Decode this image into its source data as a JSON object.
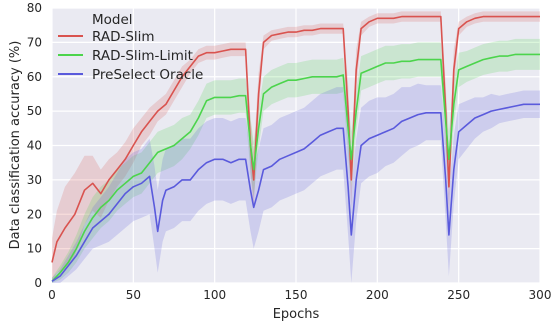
{
  "chart_data": {
    "type": "line",
    "xlabel": "Epochs",
    "ylabel": "Data classification accuracy (%)",
    "xlim": [
      0,
      300
    ],
    "ylim": [
      0,
      80
    ],
    "xticks": [
      "0",
      "50",
      "100",
      "150",
      "200",
      "250",
      "300"
    ],
    "yticks": [
      "0",
      "10",
      "20",
      "30",
      "40",
      "50",
      "60",
      "70",
      "80"
    ],
    "grid": true,
    "legend": {
      "title": "Model",
      "placement": "top-left"
    },
    "series": [
      {
        "name": "RAD-Slim",
        "color": "#d9534f",
        "x": [
          0,
          3,
          8,
          14,
          20,
          25,
          30,
          35,
          40,
          45,
          50,
          55,
          60,
          65,
          70,
          75,
          80,
          85,
          90,
          95,
          100,
          105,
          110,
          115,
          119,
          122,
          124,
          127,
          130,
          135,
          140,
          145,
          150,
          155,
          160,
          165,
          170,
          175,
          179,
          182,
          184,
          187,
          190,
          195,
          200,
          205,
          210,
          215,
          220,
          225,
          230,
          235,
          239,
          242,
          244,
          247,
          250,
          255,
          260,
          265,
          270,
          275,
          280,
          285,
          290,
          295,
          300
        ],
        "y": [
          6,
          12,
          16,
          20,
          27,
          29,
          26,
          30,
          33,
          36,
          40,
          44,
          47,
          50,
          52,
          56,
          60,
          63,
          66,
          67,
          67,
          67.5,
          68,
          68,
          68,
          40,
          30,
          55,
          70,
          72,
          72.5,
          73,
          73,
          73.5,
          73.5,
          74,
          74,
          74,
          74,
          50,
          30,
          62,
          74,
          76,
          77,
          77,
          77,
          77.5,
          77.5,
          77.5,
          77.5,
          77.5,
          77.5,
          50,
          28,
          62,
          74,
          76,
          77,
          77.5,
          77.5,
          77.5,
          77.5,
          77.5,
          77.5,
          77.5,
          77.5
        ],
        "band": [
          7,
          9,
          12,
          12,
          10,
          8,
          7,
          6,
          5,
          5,
          5,
          4,
          4,
          3,
          3,
          3,
          3,
          2,
          2,
          2,
          2,
          2,
          2,
          2,
          2,
          8,
          8,
          6,
          2,
          1.5,
          1.5,
          1.5,
          1.5,
          1.5,
          1.5,
          1.5,
          1.5,
          1.5,
          1.5,
          8,
          8,
          6,
          2,
          1.5,
          1.5,
          1.5,
          1.5,
          1.5,
          1.5,
          1.5,
          1.5,
          1.5,
          1.5,
          8,
          8,
          6,
          2,
          1.5,
          1.5,
          1.5,
          1.5,
          1.5,
          1.5,
          1.5,
          1.5,
          1.5,
          1.5
        ]
      },
      {
        "name": "RAD-Slim-Limit",
        "color": "#4cd44c",
        "x": [
          0,
          5,
          10,
          15,
          20,
          25,
          30,
          35,
          40,
          45,
          50,
          55,
          60,
          65,
          70,
          75,
          80,
          85,
          90,
          95,
          100,
          105,
          110,
          115,
          119,
          122,
          124,
          127,
          130,
          135,
          140,
          145,
          150,
          155,
          160,
          165,
          170,
          175,
          179,
          182,
          184,
          187,
          190,
          195,
          200,
          205,
          210,
          215,
          220,
          225,
          230,
          235,
          239,
          242,
          244,
          247,
          250,
          255,
          260,
          265,
          270,
          275,
          280,
          285,
          290,
          295,
          300
        ],
        "y": [
          0.5,
          3,
          6,
          10,
          15,
          19,
          22,
          24,
          27,
          29,
          31,
          32,
          35,
          38,
          39,
          40,
          42,
          44,
          48,
          53,
          54,
          54,
          54,
          54.5,
          54.5,
          40,
          33,
          45,
          55,
          57,
          58,
          59,
          59,
          59.5,
          60,
          60,
          60,
          60,
          60.5,
          45,
          36,
          50,
          61,
          62,
          63,
          64,
          64,
          64.5,
          64.5,
          65,
          65,
          65,
          65,
          47,
          36,
          52,
          62,
          63,
          64,
          65,
          65.5,
          66,
          66,
          66.5,
          66.5,
          66.5,
          66.5
        ],
        "band": [
          1,
          2,
          3,
          4,
          5,
          6,
          6,
          6,
          6,
          6,
          6,
          6,
          6,
          6,
          6,
          6,
          6,
          5,
          5,
          5,
          5,
          5,
          5,
          5,
          5,
          8,
          8,
          6,
          5,
          5,
          5,
          5,
          5,
          5,
          5,
          5,
          5,
          5,
          5,
          8,
          8,
          6,
          5,
          5,
          5,
          5,
          5,
          5,
          5,
          5,
          5,
          5,
          5,
          8,
          8,
          6,
          5,
          4.5,
          4.5,
          4.5,
          4.5,
          4.5,
          4.5,
          4.5,
          4.5,
          4.5,
          4.5
        ]
      },
      {
        "name": "PreSelect Oracle",
        "color": "#5a5adc",
        "x": [
          0,
          5,
          10,
          15,
          20,
          25,
          30,
          35,
          40,
          45,
          50,
          55,
          60,
          63,
          65,
          68,
          70,
          75,
          80,
          85,
          90,
          95,
          100,
          105,
          110,
          115,
          119,
          122,
          124,
          127,
          130,
          135,
          140,
          145,
          150,
          155,
          160,
          165,
          170,
          175,
          179,
          182,
          184,
          187,
          190,
          195,
          200,
          205,
          210,
          215,
          220,
          225,
          230,
          235,
          239,
          242,
          244,
          247,
          250,
          255,
          260,
          265,
          270,
          275,
          280,
          285,
          290,
          295,
          300
        ],
        "y": [
          0.5,
          2,
          5,
          8,
          12,
          16,
          18,
          20,
          23,
          26,
          28,
          29,
          31,
          22,
          15,
          24,
          27,
          28,
          30,
          30,
          33,
          35,
          36,
          36,
          35,
          36,
          36,
          27,
          22,
          27,
          33,
          34,
          36,
          37,
          38,
          39,
          41,
          43,
          44,
          45,
          45,
          28,
          14,
          30,
          40,
          42,
          43,
          44,
          45,
          47,
          48,
          49,
          49.5,
          49.5,
          49.5,
          30,
          14,
          33,
          44,
          46,
          48,
          49,
          50,
          50.5,
          51,
          51.5,
          52,
          52,
          52
        ],
        "band": [
          1,
          2,
          3,
          4,
          5,
          6,
          7,
          8,
          9,
          10,
          10,
          10,
          11,
          12,
          12,
          12,
          12,
          12,
          12,
          12,
          12,
          12,
          12,
          12,
          12,
          12,
          12,
          12,
          12,
          12,
          12,
          12,
          12,
          12,
          12,
          12,
          12,
          12,
          12,
          12,
          12,
          14,
          14,
          12,
          11,
          11,
          11,
          10,
          10,
          10,
          9,
          9,
          8,
          8,
          8,
          12,
          12,
          10,
          8,
          7,
          6,
          5,
          5,
          4,
          4,
          4,
          4,
          4,
          4
        ]
      }
    ]
  }
}
